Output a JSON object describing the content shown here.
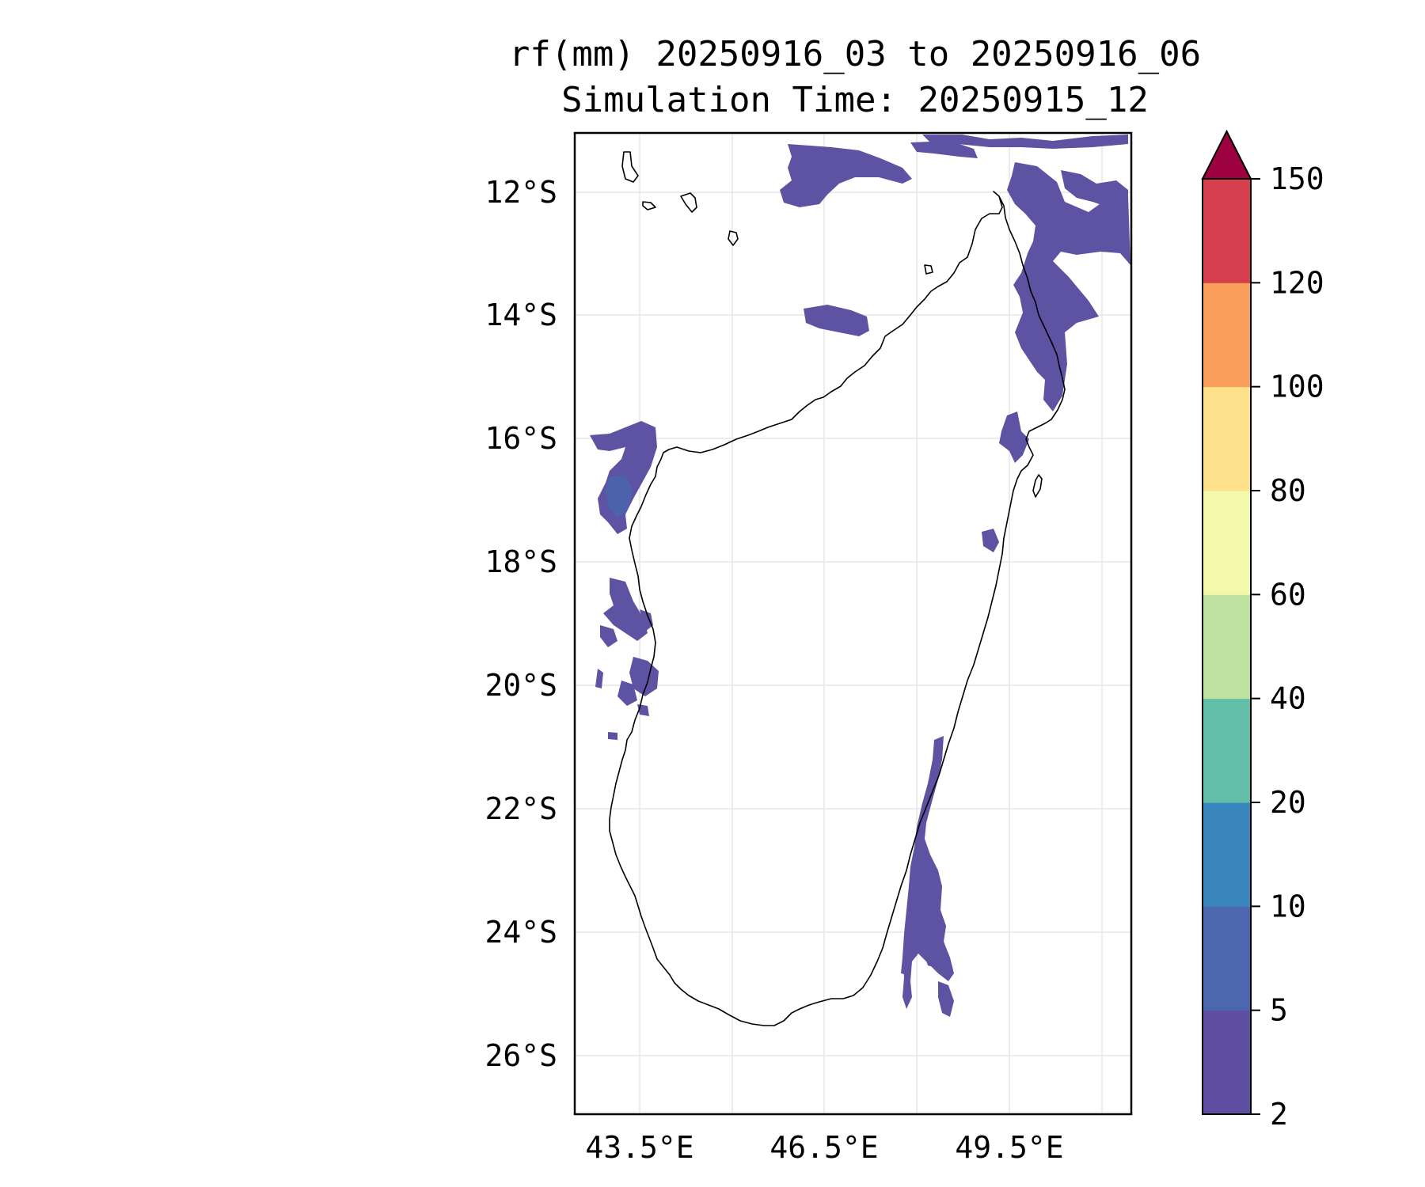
{
  "title_line_1": "rf(mm) 20250916_03 to 20250916_06",
  "title_line_2": "Simulation Time: 20250915_12",
  "map": {
    "lon_range": [
      42.45,
      51.5
    ],
    "lat_range": [
      -27.0,
      -11.05
    ],
    "lat_ticks": [
      "12°S",
      "14°S",
      "16°S",
      "18°S",
      "20°S",
      "22°S",
      "24°S",
      "26°S"
    ],
    "lon_ticks": [
      "43.5°E",
      "46.5°E",
      "49.5°E"
    ],
    "gridlines": true,
    "coastline_color": "#000000",
    "rain_color": "#5e52a3"
  },
  "colorbar": {
    "levels": [
      "2",
      "5",
      "10",
      "20",
      "40",
      "60",
      "80",
      "100",
      "120",
      "150"
    ],
    "colors": [
      "#5e4fa2",
      "#4c66b0",
      "#3a85bb",
      "#63bea9",
      "#bde2a0",
      "#f3f9ab",
      "#fde18b",
      "#fba05c",
      "#d6404e",
      "#9e0142"
    ],
    "extend": "max"
  }
}
